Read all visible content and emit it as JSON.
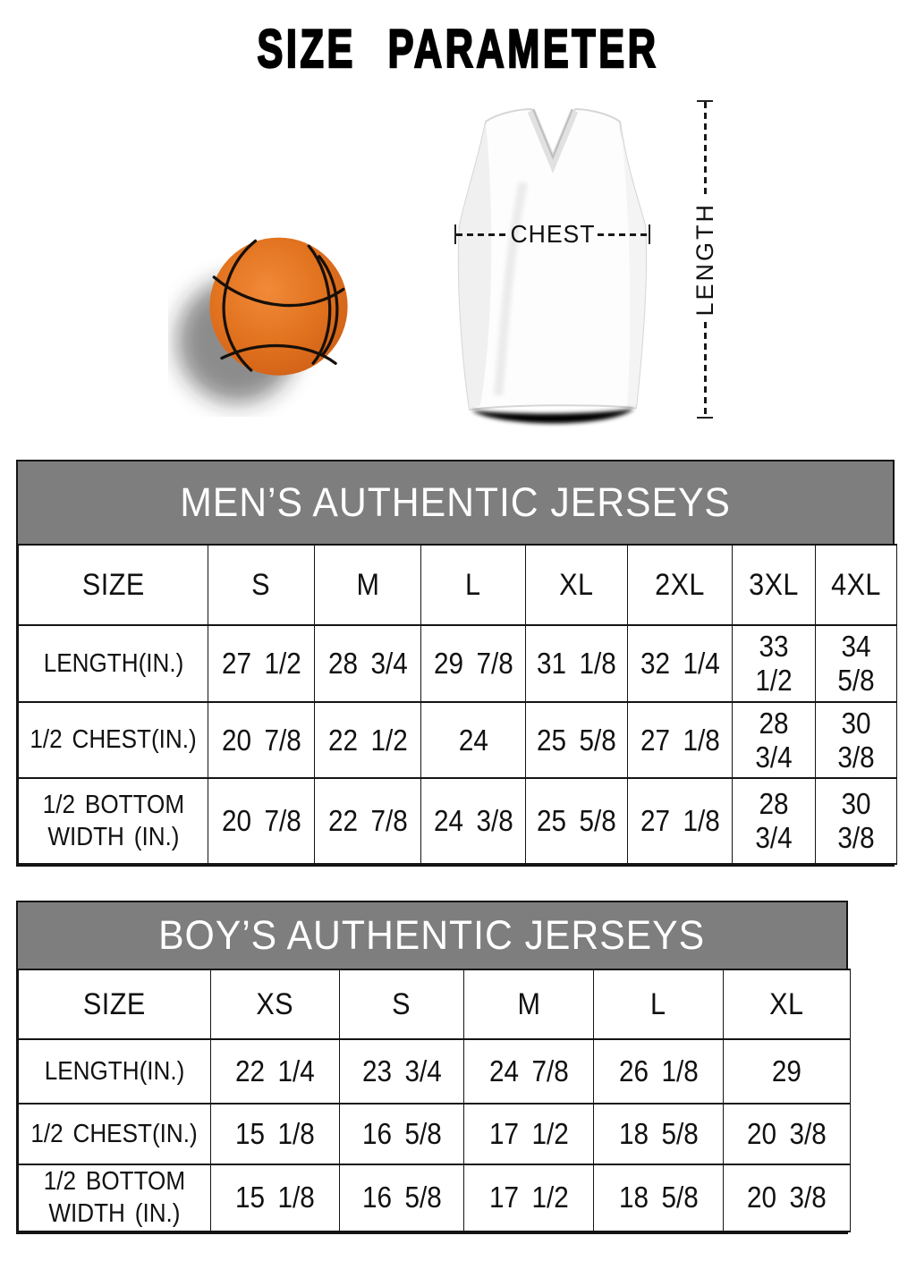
{
  "title": "SIZE PARAMETER",
  "diagram": {
    "chest_label": "CHEST",
    "length_label": "LENGTH",
    "basketball_color": "#e2731f",
    "jersey_color": "#ffffff"
  },
  "men_table": {
    "title": "MEN’S AUTHENTIC JERSEYS",
    "header_bg": "#7e7e7e",
    "header": [
      "SIZE",
      "S",
      "M",
      "L",
      "XL",
      "2XL",
      "3XL",
      "4XL"
    ],
    "rows": [
      {
        "label": "LENGTH(IN.)",
        "values": [
          "27 1/2",
          "28 3/4",
          "29 7/8",
          "31 1/8",
          "32 1/4",
          "33 1/2",
          "34 5/8"
        ]
      },
      {
        "label": "1/2 CHEST(IN.)",
        "values": [
          "20 7/8",
          "22 1/2",
          "24",
          "25 5/8",
          "27 1/8",
          "28 3/4",
          "30 3/8"
        ]
      },
      {
        "label": "1/2 BOTTOM\nWIDTH (IN.)",
        "values": [
          "20 7/8",
          "22 7/8",
          "24 3/8",
          "25 5/8",
          "27 1/8",
          "28 3/4",
          "30 3/8"
        ]
      }
    ]
  },
  "boys_table": {
    "title": "BOY’S AUTHENTIC JERSEYS",
    "header_bg": "#7e7e7e",
    "header": [
      "SIZE",
      "XS",
      "S",
      "M",
      "L",
      "XL"
    ],
    "rows": [
      {
        "label": "LENGTH(IN.)",
        "values": [
          "22 1/4",
          "23 3/4",
          "24 7/8",
          "26 1/8",
          "29"
        ]
      },
      {
        "label": "1/2 CHEST(IN.)",
        "values": [
          "15 1/8",
          "16 5/8",
          "17 1/2",
          "18 5/8",
          "20 3/8"
        ]
      },
      {
        "label": "1/2 BOTTOM\nWIDTH (IN.)",
        "values": [
          "15 1/8",
          "16 5/8",
          "17 1/2",
          "18 5/8",
          "20 3/8"
        ]
      }
    ]
  }
}
